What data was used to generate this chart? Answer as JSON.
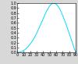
{
  "n": 1.5,
  "x_min": 0,
  "x_max": 90,
  "y_min": 0,
  "y_max": 1,
  "x_ticks": [
    0,
    10,
    20,
    30,
    40,
    50,
    60,
    70,
    80,
    90
  ],
  "y_ticks": [
    0,
    0.1,
    0.2,
    0.3,
    0.4,
    0.5,
    0.6,
    0.7,
    0.8,
    0.9,
    1
  ],
  "line_color": "#00d8ff",
  "line_width": 0.7,
  "background_color": "#d8d8d8",
  "plot_bg_color": "#ffffff",
  "tick_fontsize": 3.5,
  "figsize": [
    1.0,
    0.82
  ],
  "dpi": 100
}
